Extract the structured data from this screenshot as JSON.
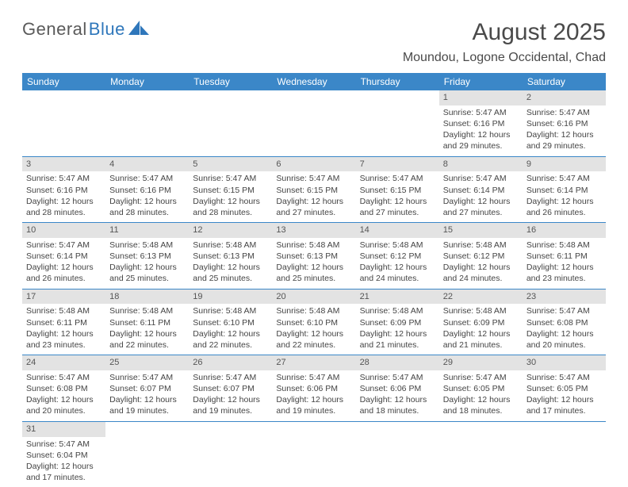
{
  "logo": {
    "text1": "General",
    "text2": "Blue"
  },
  "title": "August 2025",
  "location": "Moundou, Logone Occidental, Chad",
  "colors": {
    "header_bg": "#3b87c8",
    "header_text": "#ffffff",
    "daynum_bg": "#e3e3e3",
    "border": "#3b87c8",
    "text": "#444444",
    "logo_blue": "#2f77bb"
  },
  "day_headers": [
    "Sunday",
    "Monday",
    "Tuesday",
    "Wednesday",
    "Thursday",
    "Friday",
    "Saturday"
  ],
  "weeks": [
    [
      {
        "n": "",
        "sr": "",
        "ss": "",
        "dl": ""
      },
      {
        "n": "",
        "sr": "",
        "ss": "",
        "dl": ""
      },
      {
        "n": "",
        "sr": "",
        "ss": "",
        "dl": ""
      },
      {
        "n": "",
        "sr": "",
        "ss": "",
        "dl": ""
      },
      {
        "n": "",
        "sr": "",
        "ss": "",
        "dl": ""
      },
      {
        "n": "1",
        "sr": "Sunrise: 5:47 AM",
        "ss": "Sunset: 6:16 PM",
        "dl": "Daylight: 12 hours and 29 minutes."
      },
      {
        "n": "2",
        "sr": "Sunrise: 5:47 AM",
        "ss": "Sunset: 6:16 PM",
        "dl": "Daylight: 12 hours and 29 minutes."
      }
    ],
    [
      {
        "n": "3",
        "sr": "Sunrise: 5:47 AM",
        "ss": "Sunset: 6:16 PM",
        "dl": "Daylight: 12 hours and 28 minutes."
      },
      {
        "n": "4",
        "sr": "Sunrise: 5:47 AM",
        "ss": "Sunset: 6:16 PM",
        "dl": "Daylight: 12 hours and 28 minutes."
      },
      {
        "n": "5",
        "sr": "Sunrise: 5:47 AM",
        "ss": "Sunset: 6:15 PM",
        "dl": "Daylight: 12 hours and 28 minutes."
      },
      {
        "n": "6",
        "sr": "Sunrise: 5:47 AM",
        "ss": "Sunset: 6:15 PM",
        "dl": "Daylight: 12 hours and 27 minutes."
      },
      {
        "n": "7",
        "sr": "Sunrise: 5:47 AM",
        "ss": "Sunset: 6:15 PM",
        "dl": "Daylight: 12 hours and 27 minutes."
      },
      {
        "n": "8",
        "sr": "Sunrise: 5:47 AM",
        "ss": "Sunset: 6:14 PM",
        "dl": "Daylight: 12 hours and 27 minutes."
      },
      {
        "n": "9",
        "sr": "Sunrise: 5:47 AM",
        "ss": "Sunset: 6:14 PM",
        "dl": "Daylight: 12 hours and 26 minutes."
      }
    ],
    [
      {
        "n": "10",
        "sr": "Sunrise: 5:47 AM",
        "ss": "Sunset: 6:14 PM",
        "dl": "Daylight: 12 hours and 26 minutes."
      },
      {
        "n": "11",
        "sr": "Sunrise: 5:48 AM",
        "ss": "Sunset: 6:13 PM",
        "dl": "Daylight: 12 hours and 25 minutes."
      },
      {
        "n": "12",
        "sr": "Sunrise: 5:48 AM",
        "ss": "Sunset: 6:13 PM",
        "dl": "Daylight: 12 hours and 25 minutes."
      },
      {
        "n": "13",
        "sr": "Sunrise: 5:48 AM",
        "ss": "Sunset: 6:13 PM",
        "dl": "Daylight: 12 hours and 25 minutes."
      },
      {
        "n": "14",
        "sr": "Sunrise: 5:48 AM",
        "ss": "Sunset: 6:12 PM",
        "dl": "Daylight: 12 hours and 24 minutes."
      },
      {
        "n": "15",
        "sr": "Sunrise: 5:48 AM",
        "ss": "Sunset: 6:12 PM",
        "dl": "Daylight: 12 hours and 24 minutes."
      },
      {
        "n": "16",
        "sr": "Sunrise: 5:48 AM",
        "ss": "Sunset: 6:11 PM",
        "dl": "Daylight: 12 hours and 23 minutes."
      }
    ],
    [
      {
        "n": "17",
        "sr": "Sunrise: 5:48 AM",
        "ss": "Sunset: 6:11 PM",
        "dl": "Daylight: 12 hours and 23 minutes."
      },
      {
        "n": "18",
        "sr": "Sunrise: 5:48 AM",
        "ss": "Sunset: 6:11 PM",
        "dl": "Daylight: 12 hours and 22 minutes."
      },
      {
        "n": "19",
        "sr": "Sunrise: 5:48 AM",
        "ss": "Sunset: 6:10 PM",
        "dl": "Daylight: 12 hours and 22 minutes."
      },
      {
        "n": "20",
        "sr": "Sunrise: 5:48 AM",
        "ss": "Sunset: 6:10 PM",
        "dl": "Daylight: 12 hours and 22 minutes."
      },
      {
        "n": "21",
        "sr": "Sunrise: 5:48 AM",
        "ss": "Sunset: 6:09 PM",
        "dl": "Daylight: 12 hours and 21 minutes."
      },
      {
        "n": "22",
        "sr": "Sunrise: 5:48 AM",
        "ss": "Sunset: 6:09 PM",
        "dl": "Daylight: 12 hours and 21 minutes."
      },
      {
        "n": "23",
        "sr": "Sunrise: 5:47 AM",
        "ss": "Sunset: 6:08 PM",
        "dl": "Daylight: 12 hours and 20 minutes."
      }
    ],
    [
      {
        "n": "24",
        "sr": "Sunrise: 5:47 AM",
        "ss": "Sunset: 6:08 PM",
        "dl": "Daylight: 12 hours and 20 minutes."
      },
      {
        "n": "25",
        "sr": "Sunrise: 5:47 AM",
        "ss": "Sunset: 6:07 PM",
        "dl": "Daylight: 12 hours and 19 minutes."
      },
      {
        "n": "26",
        "sr": "Sunrise: 5:47 AM",
        "ss": "Sunset: 6:07 PM",
        "dl": "Daylight: 12 hours and 19 minutes."
      },
      {
        "n": "27",
        "sr": "Sunrise: 5:47 AM",
        "ss": "Sunset: 6:06 PM",
        "dl": "Daylight: 12 hours and 19 minutes."
      },
      {
        "n": "28",
        "sr": "Sunrise: 5:47 AM",
        "ss": "Sunset: 6:06 PM",
        "dl": "Daylight: 12 hours and 18 minutes."
      },
      {
        "n": "29",
        "sr": "Sunrise: 5:47 AM",
        "ss": "Sunset: 6:05 PM",
        "dl": "Daylight: 12 hours and 18 minutes."
      },
      {
        "n": "30",
        "sr": "Sunrise: 5:47 AM",
        "ss": "Sunset: 6:05 PM",
        "dl": "Daylight: 12 hours and 17 minutes."
      }
    ],
    [
      {
        "n": "31",
        "sr": "Sunrise: 5:47 AM",
        "ss": "Sunset: 6:04 PM",
        "dl": "Daylight: 12 hours and 17 minutes."
      },
      {
        "n": "",
        "sr": "",
        "ss": "",
        "dl": ""
      },
      {
        "n": "",
        "sr": "",
        "ss": "",
        "dl": ""
      },
      {
        "n": "",
        "sr": "",
        "ss": "",
        "dl": ""
      },
      {
        "n": "",
        "sr": "",
        "ss": "",
        "dl": ""
      },
      {
        "n": "",
        "sr": "",
        "ss": "",
        "dl": ""
      },
      {
        "n": "",
        "sr": "",
        "ss": "",
        "dl": ""
      }
    ]
  ]
}
